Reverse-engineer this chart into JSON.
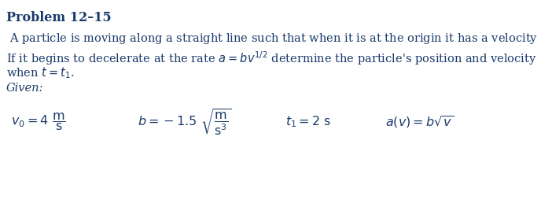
{
  "title": "Problem 12–15",
  "body1": "A particle is moving along a straight line such that when it is at the origin it has a velocity ",
  "body1_end": ".",
  "body2a": "If it begins to decelerate at the rate ",
  "body2b": " determine the particle’s position and velocity",
  "body3a": "when ",
  "body3b": ".",
  "given": "Given:",
  "bg_color": "#ffffff",
  "title_color": "#1a3a6b",
  "blue_color": "#1a3a6b",
  "fontsize_title": 11.5,
  "fontsize_body": 10.5,
  "fontsize_math": 11.5
}
